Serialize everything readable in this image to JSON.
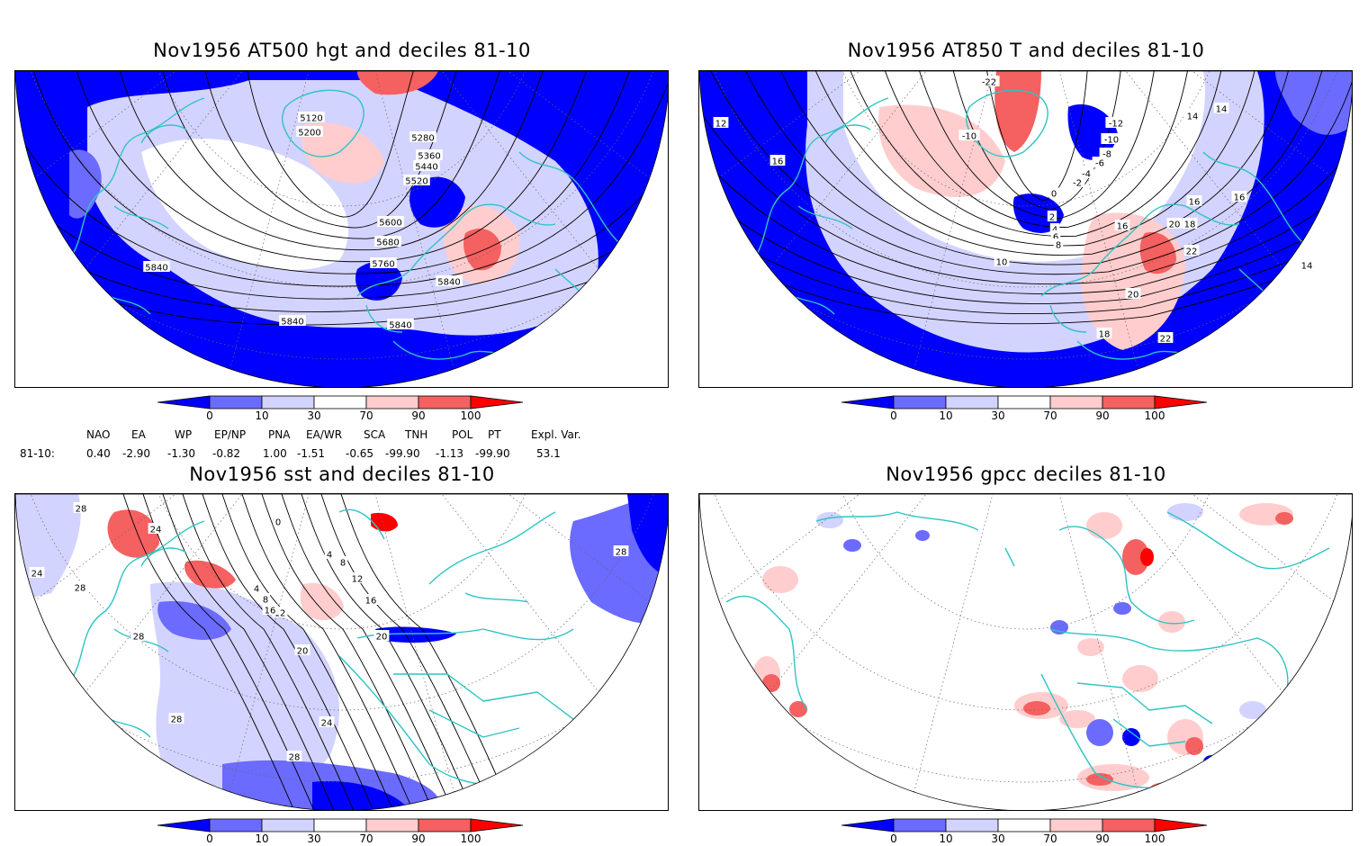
{
  "panels": [
    {
      "id": "hgt500",
      "title": "Nov1956 AT500 hgt and deciles 81-10",
      "contour_labels": [
        "5120",
        "5200",
        "5280",
        "5360",
        "5440",
        "5520",
        "5600",
        "5680",
        "5760",
        "5840",
        "5840",
        "5840",
        "5840"
      ]
    },
    {
      "id": "t850",
      "title": "Nov1956 AT850 T and deciles 81-10",
      "contour_labels": [
        "-22",
        "-10",
        "-12",
        "-10",
        "-8",
        "-6",
        "-4",
        "-2",
        "0",
        "2",
        "4",
        "6",
        "8",
        "10",
        "12",
        "14",
        "14",
        "14",
        "16",
        "16",
        "16",
        "16",
        "18",
        "18",
        "20",
        "20",
        "22",
        "22"
      ]
    },
    {
      "id": "sst",
      "title": "Nov1956 sst and deciles 81-10",
      "contour_labels": [
        "28",
        "24",
        "28",
        "28",
        "24",
        "0",
        "4",
        "8",
        "12",
        "16",
        "20",
        "24",
        "28",
        "28",
        "4",
        "8",
        "12",
        "16",
        "20",
        "28"
      ]
    },
    {
      "id": "gpcc",
      "title": "Nov1956 gpcc deciles 81-10",
      "contour_labels": []
    }
  ],
  "colorbar": {
    "ticks": [
      "0",
      "10",
      "30",
      "70",
      "90",
      "100"
    ],
    "colors": {
      "dark_blue": "#0000ff",
      "mid_blue": "#6b6bff",
      "light_blue": "#d3d3ff",
      "white": "#ffffff",
      "light_red": "#ffcdcd",
      "mid_red": "#f56060",
      "dark_red": "#ff0000"
    }
  },
  "indices": {
    "headers": [
      "NAO",
      "EA",
      "WP",
      "EP/NP",
      "PNA",
      "EA/WR",
      "SCA",
      "TNH",
      "POL",
      "PT",
      "Expl. Var."
    ],
    "row_label": "81-10:",
    "values": [
      "0.40",
      "-2.90",
      "-1.30",
      "-0.82",
      "1.00",
      "-1.51",
      "-0.65",
      "-99.90",
      "-1.13",
      "-99.90",
      "53.1"
    ]
  },
  "map_colors": {
    "coastline": "#2ec4c4",
    "contour": "#000000",
    "grid": "#666666"
  }
}
